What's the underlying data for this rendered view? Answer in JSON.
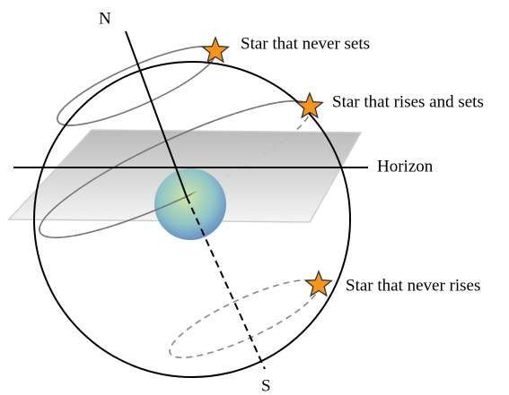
{
  "labels": {
    "north": "N",
    "south": "S",
    "horizon": "Horizon"
  },
  "stars": [
    {
      "label": "Star that never sets"
    },
    {
      "label": "Star that rises and sets"
    },
    {
      "label": "Star that never rises"
    }
  ]
}
